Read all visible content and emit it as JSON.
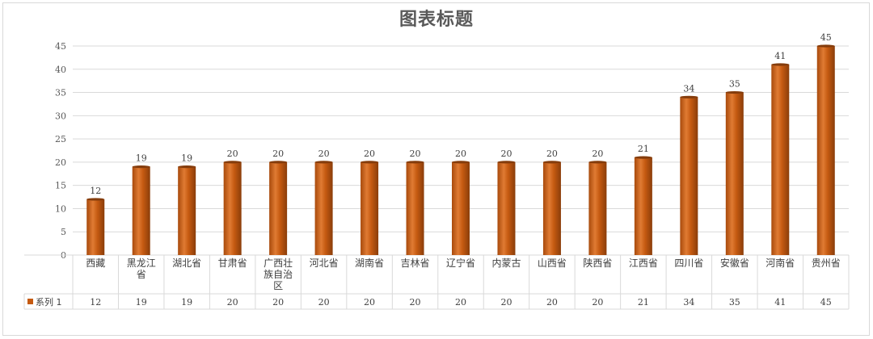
{
  "chart_data": {
    "type": "bar",
    "title": "图表标题",
    "categories": [
      "西藏",
      "黑龙江省",
      "湖北省",
      "甘肃省",
      "广西壮族自治区",
      "河北省",
      "湖南省",
      "吉林省",
      "辽宁省",
      "内蒙古",
      "山西省",
      "陕西省",
      "江西省",
      "四川省",
      "安徽省",
      "河南省",
      "贵州省"
    ],
    "category_lines": [
      [
        "西藏"
      ],
      [
        "黑龙江",
        "省"
      ],
      [
        "湖北省"
      ],
      [
        "甘肃省"
      ],
      [
        "广西壮",
        "族自治",
        "区"
      ],
      [
        "河北省"
      ],
      [
        "湖南省"
      ],
      [
        "吉林省"
      ],
      [
        "辽宁省"
      ],
      [
        "内蒙古"
      ],
      [
        "山西省"
      ],
      [
        "陕西省"
      ],
      [
        "江西省"
      ],
      [
        "四川省"
      ],
      [
        "安徽省"
      ],
      [
        "河南省"
      ],
      [
        "贵州省"
      ]
    ],
    "series": [
      {
        "name": "系列 1",
        "values": [
          12,
          19,
          19,
          20,
          20,
          20,
          20,
          20,
          20,
          20,
          20,
          20,
          21,
          34,
          35,
          41,
          45
        ]
      }
    ],
    "ylim": [
      0,
      45
    ],
    "yticks": [
      0,
      5,
      10,
      15,
      20,
      25,
      30,
      35,
      40,
      45
    ],
    "grid": true,
    "data_table": true,
    "colors": {
      "bar": "#c55a11",
      "bar_light": "#f4b183",
      "bar_dark": "#843c0c",
      "grid": "#d9d9d9"
    }
  }
}
